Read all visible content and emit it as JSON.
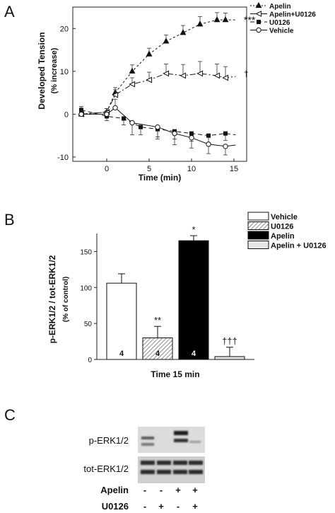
{
  "chart_data": [
    {
      "type": "line",
      "panel_label": "A",
      "xlabel": "Time (min)",
      "ylabel_line1": "Developed Tension",
      "ylabel_line2": "(% increase)",
      "xlim": [
        -4,
        16.5
      ],
      "ylim": [
        -11,
        25
      ],
      "x_ticks": [
        0,
        5,
        10,
        15
      ],
      "y_ticks": [
        -10,
        0,
        10,
        20
      ],
      "series": [
        {
          "name": "Apelin",
          "marker": "filled-triangle",
          "dash": "3,3",
          "x": [
            -3,
            0,
            1,
            3,
            5,
            7,
            9,
            11,
            13,
            14
          ],
          "y": [
            0,
            0.5,
            5,
            10,
            14,
            17,
            19,
            21,
            22,
            22
          ],
          "err": [
            0.6,
            0.8,
            1.2,
            1.5,
            1.4,
            1.5,
            1.7,
            1.8,
            1.7,
            1.6
          ],
          "label": "***"
        },
        {
          "name": "Apelin+U0126",
          "marker": "open-triangle-left",
          "dash": "8,3,2,3",
          "x": [
            -3,
            0,
            1,
            3,
            5,
            7,
            9,
            11,
            13,
            14
          ],
          "y": [
            0,
            0.5,
            4.5,
            7,
            8,
            9.5,
            9,
            9.5,
            9,
            8.5
          ],
          "err": [
            0.5,
            0.8,
            1.2,
            1.5,
            1.8,
            2.2,
            2.6,
            2.8,
            2.7,
            2.6
          ],
          "label": "†"
        },
        {
          "name": "U0126",
          "marker": "filled-square",
          "dash": "6,4",
          "x": [
            -3,
            0,
            2,
            4,
            6,
            8,
            10,
            12,
            14
          ],
          "y": [
            1,
            -0.5,
            -1,
            -3,
            -3.5,
            -4,
            -4.5,
            -5,
            -4.5
          ],
          "err": [
            0.8,
            1,
            1.5,
            1.8,
            1.8,
            1.8,
            1.8,
            1.7,
            1.6
          ]
        },
        {
          "name": "Vehicle",
          "marker": "open-circle",
          "dash": "",
          "x": [
            -3,
            0,
            1,
            3,
            6,
            8,
            10,
            12,
            14
          ],
          "y": [
            0,
            0,
            1.5,
            -2,
            -3,
            -4.5,
            -5.5,
            -7,
            -7.5
          ],
          "err": [
            0.6,
            0.8,
            2,
            2.8,
            2.8,
            2.6,
            2.4,
            2.2,
            2
          ],
          "label": ""
        }
      ]
    },
    {
      "type": "bar",
      "panel_label": "B",
      "xlabel": "Time 15 min",
      "ylabel_line1": "p-ERK1/2 / tot-ERK1/2",
      "ylabel_line2": "(% of control)",
      "ylim": [
        0,
        175
      ],
      "y_ticks": [
        0,
        50,
        100,
        150
      ],
      "categories": [
        "Vehicle",
        "U0126",
        "Apelin",
        "Apelin + U0126"
      ],
      "values": [
        106,
        30,
        165,
        4
      ],
      "errors": [
        13,
        16,
        7,
        13
      ],
      "n_labels": [
        "4",
        "4",
        "4",
        ""
      ],
      "significance": [
        "",
        "**",
        "*",
        "†††"
      ],
      "fills": [
        "#ffffff",
        "hatch",
        "#000000",
        "#e6e6e6"
      ]
    }
  ],
  "blot": {
    "panel_label": "C",
    "row_labels": [
      "p-ERK1/2",
      "tot-ERK1/2"
    ],
    "conditions": [
      {
        "name": "Apelin",
        "marks": [
          "-",
          "-",
          "+",
          "+"
        ]
      },
      {
        "name": "U0126",
        "marks": [
          "-",
          "+",
          "-",
          "+"
        ]
      }
    ]
  }
}
